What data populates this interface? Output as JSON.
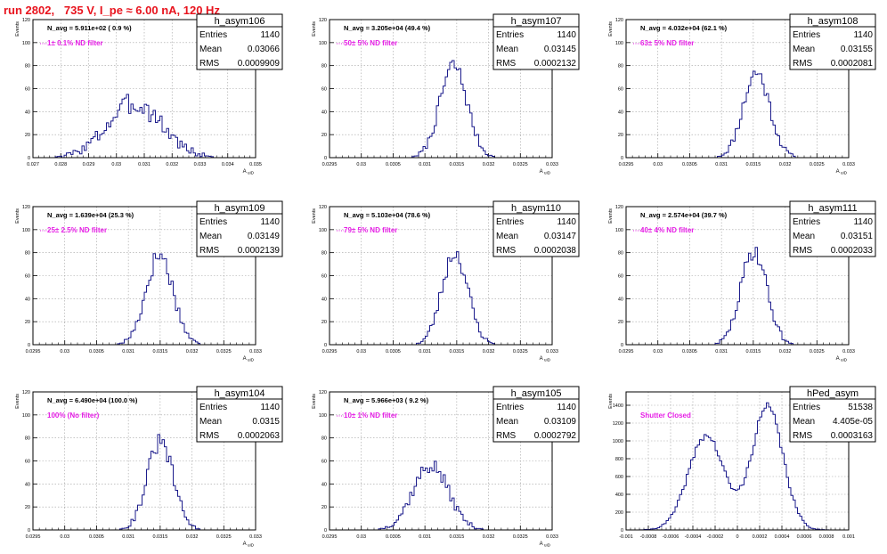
{
  "title": "run 2802,   735 V, I_pe ≈ 6.00 nA, 120 Hz",
  "colors": {
    "title": "#e8141e",
    "annotation": "#e61ee6",
    "histogram": "#1c1c8c",
    "grid": "#a0a0a0"
  },
  "chart_data": [
    {
      "type": "histogram",
      "name": "h_asym106",
      "stats": {
        "entries_label": "Entries",
        "entries": "1140",
        "mean_label": "Mean",
        "mean": "0.03066",
        "rms_label": "RMS",
        "rms": "0.0009909"
      },
      "navg": "N_avg = 5.911e+02 ( 0.9 %)",
      "filter": "1± 0.1% ND filter",
      "ylabel": "Events",
      "xlabel": "A_uID",
      "xlim": [
        0.027,
        0.035
      ],
      "ylim": [
        0,
        120
      ],
      "grid": true,
      "xticks": [
        "0.027",
        "0.028",
        "0.029",
        "0.03",
        "0.031",
        "0.032",
        "0.033",
        "0.034",
        "0.035"
      ],
      "yticks": [
        "0",
        "20",
        "40",
        "60",
        "80",
        "100",
        "120"
      ],
      "shape": {
        "components": [
          {
            "mean": 0.03066,
            "sigma": 0.00099,
            "peak": 47
          }
        ],
        "noise": 10,
        "seed": 3
      }
    },
    {
      "type": "histogram",
      "name": "h_asym107",
      "stats": {
        "entries_label": "Entries",
        "entries": "1140",
        "mean_label": "Mean",
        "mean": "0.03145",
        "rms_label": "RMS",
        "rms": "0.0002132"
      },
      "navg": "N_avg = 3.205e+04 (49.4 %)",
      "filter": "50± 5% ND filter",
      "ylabel": "Events",
      "xlabel": "A_uID",
      "xlim": [
        0.0295,
        0.033
      ],
      "ylim": [
        0,
        120
      ],
      "grid": true,
      "xticks": [
        "0.0295",
        "0.03",
        "0.0305",
        "0.031",
        "0.0315",
        "0.032",
        "0.0325",
        "0.033"
      ],
      "yticks": [
        "0",
        "20",
        "40",
        "60",
        "80",
        "100",
        "120"
      ],
      "shape": {
        "components": [
          {
            "mean": 0.03145,
            "sigma": 0.000213,
            "peak": 80
          }
        ],
        "noise": 8,
        "seed": 7
      }
    },
    {
      "type": "histogram",
      "name": "h_asym108",
      "stats": {
        "entries_label": "Entries",
        "entries": "1140",
        "mean_label": "Mean",
        "mean": "0.03155",
        "rms_label": "RMS",
        "rms": "0.0002081"
      },
      "navg": "N_avg = 4.032e+04 (62.1 %)",
      "filter": "63± 5% ND filter",
      "ylabel": "Events",
      "xlabel": "A_uID",
      "xlim": [
        0.0295,
        0.033
      ],
      "ylim": [
        0,
        120
      ],
      "grid": true,
      "xticks": [
        "0.0295",
        "0.03",
        "0.0305",
        "0.031",
        "0.0315",
        "0.032",
        "0.0325",
        "0.033"
      ],
      "yticks": [
        "0",
        "20",
        "40",
        "60",
        "80",
        "100",
        "120"
      ],
      "shape": {
        "components": [
          {
            "mean": 0.03155,
            "sigma": 0.000208,
            "peak": 74
          }
        ],
        "noise": 8,
        "seed": 11
      }
    },
    {
      "type": "histogram",
      "name": "h_asym109",
      "stats": {
        "entries_label": "Entries",
        "entries": "1140",
        "mean_label": "Mean",
        "mean": "0.03149",
        "rms_label": "RMS",
        "rms": "0.0002139"
      },
      "navg": "N_avg = 1.639e+04 (25.3 %)",
      "filter": "25± 2.5% ND filter",
      "ylabel": "Events",
      "xlabel": "A_uID",
      "xlim": [
        0.0295,
        0.033
      ],
      "ylim": [
        0,
        120
      ],
      "grid": true,
      "xticks": [
        "0.0295",
        "0.03",
        "0.0305",
        "0.031",
        "0.0315",
        "0.032",
        "0.0325",
        "0.033"
      ],
      "yticks": [
        "0",
        "20",
        "40",
        "60",
        "80",
        "100",
        "120"
      ],
      "shape": {
        "components": [
          {
            "mean": 0.03149,
            "sigma": 0.000214,
            "peak": 78
          }
        ],
        "noise": 9,
        "seed": 17
      }
    },
    {
      "type": "histogram",
      "name": "h_asym110",
      "stats": {
        "entries_label": "Entries",
        "entries": "1140",
        "mean_label": "Mean",
        "mean": "0.03147",
        "rms_label": "RMS",
        "rms": "0.0002038"
      },
      "navg": "N_avg = 5.103e+04 (78.6 %)",
      "filter": "79± 5% ND filter",
      "ylabel": "Events",
      "xlabel": "A_uID",
      "xlim": [
        0.0295,
        0.033
      ],
      "ylim": [
        0,
        120
      ],
      "grid": true,
      "xticks": [
        "0.0295",
        "0.03",
        "0.0305",
        "0.031",
        "0.0315",
        "0.032",
        "0.0325",
        "0.033"
      ],
      "yticks": [
        "0",
        "20",
        "40",
        "60",
        "80",
        "100",
        "120"
      ],
      "shape": {
        "components": [
          {
            "mean": 0.03147,
            "sigma": 0.000204,
            "peak": 80
          }
        ],
        "noise": 8,
        "seed": 23
      }
    },
    {
      "type": "histogram",
      "name": "h_asym111",
      "stats": {
        "entries_label": "Entries",
        "entries": "1140",
        "mean_label": "Mean",
        "mean": "0.03151",
        "rms_label": "RMS",
        "rms": "0.0002033"
      },
      "navg": "N_avg = 2.574e+04 (39.7 %)",
      "filter": "40± 4% ND filter",
      "ylabel": "Events",
      "xlabel": "A_uID",
      "xlim": [
        0.0295,
        0.033
      ],
      "ylim": [
        0,
        120
      ],
      "grid": true,
      "xticks": [
        "0.0295",
        "0.03",
        "0.0305",
        "0.031",
        "0.0315",
        "0.032",
        "0.0325",
        "0.033"
      ],
      "yticks": [
        "0",
        "20",
        "40",
        "60",
        "80",
        "100",
        "120"
      ],
      "shape": {
        "components": [
          {
            "mean": 0.03151,
            "sigma": 0.000203,
            "peak": 82
          }
        ],
        "noise": 8,
        "seed": 29
      }
    },
    {
      "type": "histogram",
      "name": "h_asym104",
      "stats": {
        "entries_label": "Entries",
        "entries": "1140",
        "mean_label": "Mean",
        "mean": "0.0315",
        "rms_label": "RMS",
        "rms": "0.0002063"
      },
      "navg": "N_avg = 6.490e+04 (100.0 %)",
      "filter": "100% (No filter)",
      "ylabel": "Events",
      "xlabel": "A_uID",
      "xlim": [
        0.0295,
        0.033
      ],
      "ylim": [
        0,
        120
      ],
      "grid": true,
      "xticks": [
        "0.0295",
        "0.03",
        "0.0305",
        "0.031",
        "0.0315",
        "0.032",
        "0.0325",
        "0.033"
      ],
      "yticks": [
        "0",
        "20",
        "40",
        "60",
        "80",
        "100",
        "120"
      ],
      "shape": {
        "components": [
          {
            "mean": 0.0315,
            "sigma": 0.000206,
            "peak": 76
          }
        ],
        "noise": 8,
        "seed": 31
      }
    },
    {
      "type": "histogram",
      "name": "h_asym105",
      "stats": {
        "entries_label": "Entries",
        "entries": "1140",
        "mean_label": "Mean",
        "mean": "0.03109",
        "rms_label": "RMS",
        "rms": "0.0002792"
      },
      "navg": "N_avg = 5.966e+03 ( 9.2 %)",
      "filter": "10± 1% ND filter",
      "ylabel": "Events",
      "xlabel": "A_uID",
      "xlim": [
        0.0295,
        0.033
      ],
      "ylim": [
        0,
        120
      ],
      "grid": true,
      "xticks": [
        "0.0295",
        "0.03",
        "0.0305",
        "0.031",
        "0.0315",
        "0.032",
        "0.0325",
        "0.033"
      ],
      "yticks": [
        "0",
        "20",
        "40",
        "60",
        "80",
        "100",
        "120"
      ],
      "shape": {
        "components": [
          {
            "mean": 0.03109,
            "sigma": 0.00028,
            "peak": 56
          }
        ],
        "noise": 7,
        "seed": 37
      }
    },
    {
      "type": "histogram",
      "name": "hPed_asym",
      "stats": {
        "entries_label": "Entries",
        "entries": "51538",
        "mean_label": "Mean",
        "mean": "4.405e-05",
        "rms_label": "RMS",
        "rms": "0.0003163"
      },
      "navg": "",
      "filter": "Shutter Closed",
      "ylabel": "Events",
      "xlabel": "",
      "xlim": [
        -0.001,
        0.001
      ],
      "ylim": [
        0,
        1550
      ],
      "grid": true,
      "xticks": [
        "-0.001",
        "-0.0008",
        "-0.0006",
        "-0.0004",
        "-0.0002",
        "0",
        "0.0002",
        "0.0004",
        "0.0006",
        "0.0008",
        "0.001"
      ],
      "yticks": [
        "0",
        "200",
        "400",
        "600",
        "800",
        "1000",
        "1200",
        "1400"
      ],
      "shape": {
        "components": [
          {
            "mean": -0.00028,
            "sigma": 0.00016,
            "peak": 1060
          },
          {
            "mean": 0.00027,
            "sigma": 0.00014,
            "peak": 1380
          }
        ],
        "noise": 40,
        "seed": 41
      }
    }
  ]
}
